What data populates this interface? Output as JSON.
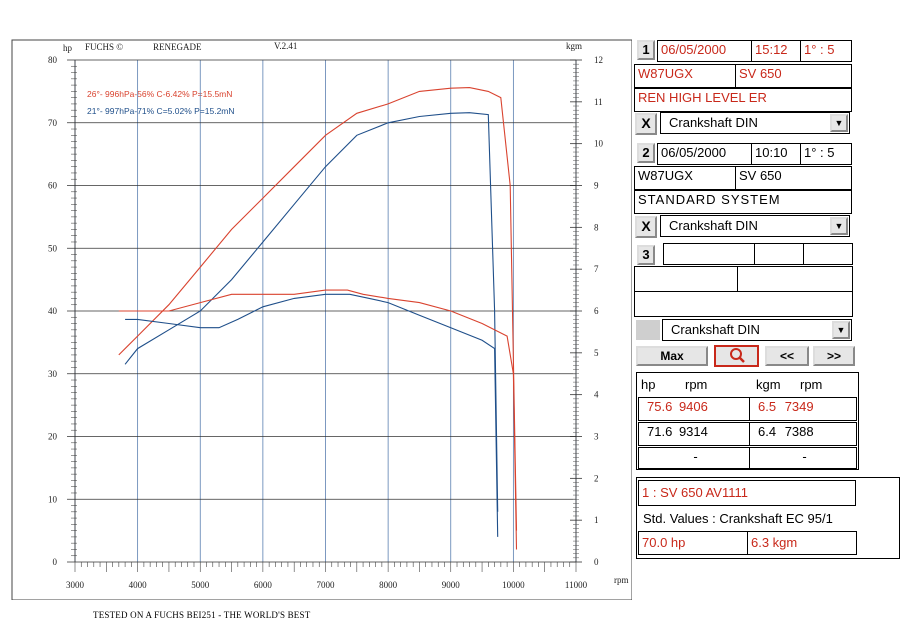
{
  "header": {
    "y_left_unit": "hp",
    "brand": "FUCHS ©",
    "model": "RENEGADE",
    "version": "V.2.41",
    "y_right_unit": "kgm",
    "x_unit": "rpm"
  },
  "legend": [
    {
      "text": "26°- 996hPa-56% C-6.42% P=15.5mN",
      "color": "#d9432f"
    },
    {
      "text": "21°- 997hPa-71% C=5.02% P=15.2mN",
      "color": "#1f4f8a"
    }
  ],
  "footer": "TESTED ON A FUCHS BEI251 - THE WORLD'S BEST",
  "chart_data": {
    "type": "line",
    "xlabel": "rpm",
    "ylabel": "hp",
    "y2label": "kgm",
    "xlim": [
      3000,
      11000
    ],
    "ylim": [
      0,
      80
    ],
    "y2lim": [
      0,
      12
    ],
    "x_ticks": [
      3000,
      4000,
      5000,
      6000,
      7000,
      8000,
      9000,
      10000,
      11000
    ],
    "y_ticks": [
      0,
      10,
      20,
      30,
      40,
      50,
      60,
      70,
      80
    ],
    "y2_ticks": [
      0,
      1,
      2,
      3,
      4,
      5,
      6,
      7,
      8,
      9,
      10,
      11,
      12
    ],
    "grid": true,
    "series": [
      {
        "name": "1 hp",
        "color": "#d9432f",
        "axis": "left",
        "x": [
          3700,
          4000,
          4500,
          5000,
          5500,
          6000,
          6500,
          7000,
          7500,
          8000,
          8500,
          9000,
          9300,
          9600,
          9800,
          9950,
          10050
        ],
        "y": [
          33,
          36,
          41,
          47,
          53,
          58,
          63,
          68,
          71.5,
          73,
          75,
          75.5,
          75.6,
          75,
          74,
          60,
          5
        ]
      },
      {
        "name": "2 hp",
        "color": "#1f4f8a",
        "axis": "left",
        "x": [
          3800,
          4000,
          4500,
          5000,
          5500,
          6000,
          6500,
          7000,
          7500,
          8000,
          8500,
          9000,
          9300,
          9600,
          9700,
          9750
        ],
        "y": [
          31.5,
          34,
          37,
          40,
          45,
          51,
          57,
          63,
          68,
          70,
          71,
          71.5,
          71.6,
          71.3,
          40,
          8
        ]
      },
      {
        "name": "1 kgm",
        "color": "#d9432f",
        "axis": "right",
        "x": [
          3700,
          4000,
          4500,
          5000,
          5500,
          6000,
          6500,
          7000,
          7349,
          7600,
          8000,
          8500,
          9000,
          9500,
          9900,
          10000,
          10050
        ],
        "y": [
          6.0,
          6.0,
          6.0,
          6.2,
          6.4,
          6.4,
          6.4,
          6.5,
          6.5,
          6.4,
          6.3,
          6.2,
          6.0,
          5.7,
          5.4,
          4.5,
          0.3
        ]
      },
      {
        "name": "2 kgm",
        "color": "#1f4f8a",
        "axis": "right",
        "x": [
          3800,
          4000,
          4500,
          5000,
          5300,
          5600,
          6000,
          6500,
          7000,
          7388,
          7700,
          8000,
          8500,
          9000,
          9500,
          9700,
          9750
        ],
        "y": [
          5.8,
          5.8,
          5.7,
          5.6,
          5.6,
          5.8,
          6.1,
          6.3,
          6.4,
          6.4,
          6.3,
          6.2,
          5.9,
          5.6,
          5.3,
          5.1,
          0.6
        ]
      }
    ]
  },
  "panel": {
    "run1": {
      "num": "1",
      "date": "06/05/2000",
      "time": "15:12",
      "ratio": "1° : 5",
      "reg": "W87UGX",
      "bike": "SV 650",
      "config": "REN HIGH LEVEL ER",
      "x": "X",
      "mode": "Crankshaft DIN"
    },
    "run2": {
      "num": "2",
      "date": "06/05/2000",
      "time": "10:10",
      "ratio": "1° : 5",
      "reg": "W87UGX",
      "bike": "SV 650",
      "config": "STANDARD SYSTEM",
      "x": "X",
      "mode": "Crankshaft DIN"
    },
    "run3": {
      "num": "3",
      "mode": "Crankshaft DIN"
    },
    "buttons": {
      "max": "Max",
      "zoom_icon": "magnifier-icon",
      "prev": "<<",
      "next": ">>"
    },
    "peaks": {
      "h_hp": "hp",
      "h_rpm": "rpm",
      "h_kgm": "kgm",
      "h_rpm2": "rpm",
      "row1": {
        "hp": "75.6",
        "rpm": "9406",
        "kgm": "6.5",
        "rpm2": "7349"
      },
      "row2": {
        "hp": "71.6",
        "rpm": "9314",
        "kgm": "6.4",
        "rpm2": "7388"
      },
      "row3": {
        "hp": "-",
        "kgm": "-"
      }
    },
    "std": {
      "title": "1 : SV 650  AV1111",
      "label": "Std. Values : Crankshaft EC 95/1",
      "hp": "70.0  hp",
      "kgm": "6.3  kgm"
    }
  },
  "colors": {
    "run1": "#d9432f",
    "run2": "#1f4f8a"
  }
}
